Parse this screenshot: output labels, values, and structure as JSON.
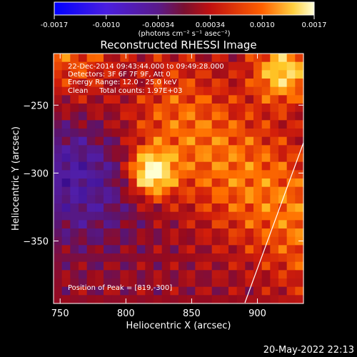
{
  "chart_data": {
    "type": "heatmap",
    "title": "Reconstructed RHESSI Image",
    "xlabel": "Heliocentric X (arcsec)",
    "ylabel": "Heliocentric Y (arcsec)",
    "xlim": [
      745,
      935
    ],
    "ylim": [
      -396,
      -212
    ],
    "xticks": [
      750,
      800,
      850,
      900
    ],
    "yticks": [
      -250,
      -300,
      -350
    ],
    "colorbar": {
      "ticks": [
        "-0.0017",
        "-0.0010",
        "-0.00034",
        "0.00034",
        "0.0010",
        "0.0017"
      ],
      "range": [
        -0.0017,
        0.0017
      ],
      "unit_label": "(photons cm⁻² s⁻¹ asec⁻²)",
      "colors": [
        "#0000ff",
        "#6a2ad6",
        "#5a1a8a",
        "#b01010",
        "#ff6000",
        "#ffffc0"
      ]
    },
    "annotations": [
      "22-Dec-2014 09:43:44.000 to 09:49:28.000",
      "Detectors: 3F 6F 7F 9F, Att 0",
      "Energy Range: 12.0 - 25.0 keV",
      "Clean     Total counts: 1.97E+03"
    ],
    "peak_label": "Position of Peak = [819,-300]",
    "peak": [
      819,
      -300
    ]
  },
  "footer_timestamp": "20-May-2022 22:13"
}
